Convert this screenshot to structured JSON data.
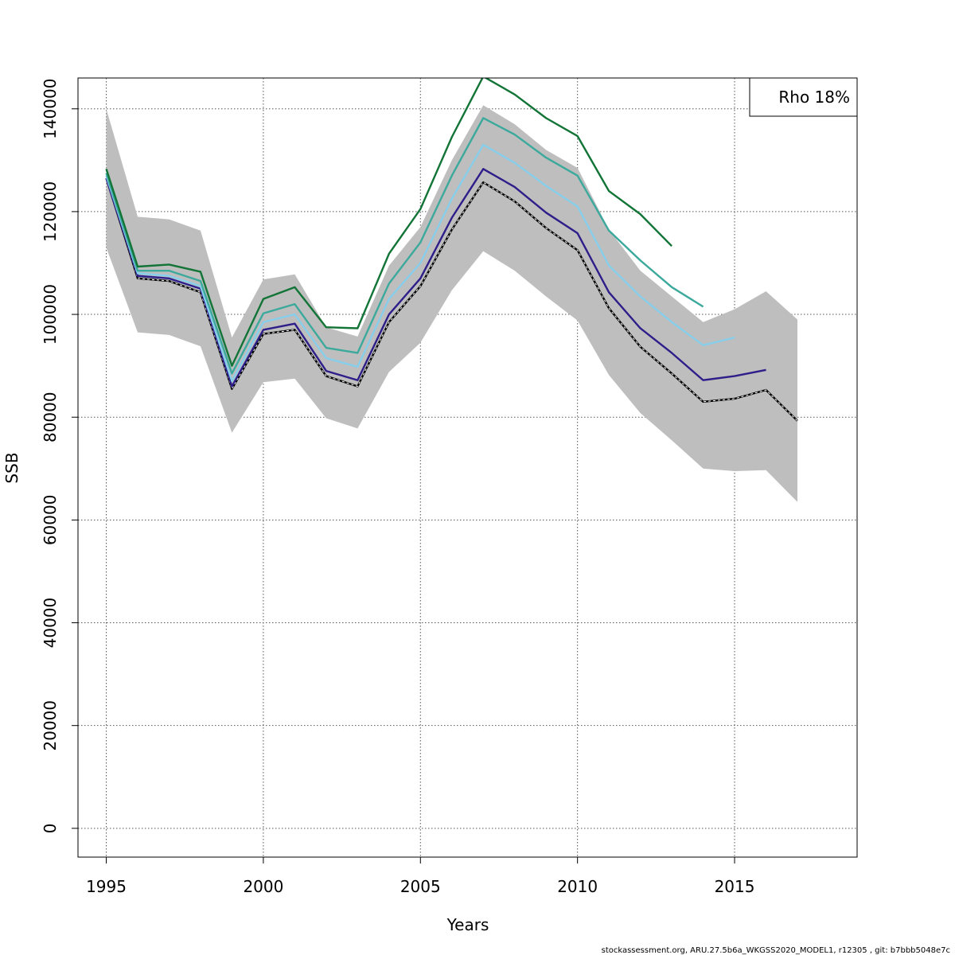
{
  "chart_data": {
    "type": "line",
    "xlabel": "Years",
    "ylabel": "SSB",
    "xlim": [
      1994.1,
      2018.9
    ],
    "ylim": [
      -5600,
      146000
    ],
    "x_ticks": [
      1995,
      2000,
      2005,
      2010,
      2015
    ],
    "y_ticks": [
      0,
      20000,
      40000,
      60000,
      80000,
      100000,
      120000,
      140000
    ],
    "grid": true,
    "legend": {
      "position": "top-right",
      "text": "Rho 18%"
    },
    "footer": "stockassessment.org, ARU.27.5b6a_WKGSS2020_MODEL1, r12305 , git: b7bbb5048e7c",
    "band": {
      "x": [
        1995,
        1996,
        1997,
        1998,
        1999,
        2000,
        2001,
        2002,
        2003,
        2004,
        2005,
        2006,
        2007,
        2008,
        2009,
        2010,
        2011,
        2012,
        2013,
        2014,
        2015,
        2016,
        2017
      ],
      "upper": [
        140000,
        119000,
        118500,
        116300,
        95500,
        106800,
        107800,
        97500,
        95700,
        109500,
        117000,
        130000,
        140700,
        137000,
        132000,
        128500,
        116500,
        108500,
        103500,
        98500,
        101000,
        104500,
        99000
      ],
      "lower": [
        113000,
        96500,
        96000,
        93800,
        77000,
        86800,
        87500,
        79800,
        77800,
        88800,
        94500,
        104700,
        112300,
        108500,
        103500,
        98800,
        88200,
        80800,
        75500,
        70000,
        69500,
        69700,
        63500
      ],
      "color": "#bebebe"
    },
    "series": [
      {
        "color": "#000000",
        "dashed": true,
        "x": [
          1995,
          1996,
          1997,
          1998,
          1999,
          2000,
          2001,
          2002,
          2003,
          2004,
          2005,
          2006,
          2007,
          2008,
          2009,
          2010,
          2011,
          2012,
          2013,
          2014,
          2015,
          2016,
          2017
        ],
        "values": [
          126500,
          107000,
          106500,
          104300,
          85500,
          96200,
          97000,
          88000,
          86000,
          98500,
          105500,
          116500,
          125700,
          122000,
          116800,
          112500,
          101200,
          93700,
          88500,
          83000,
          83600,
          85300,
          79300
        ]
      },
      {
        "color": "#2e1e8a",
        "dashed": false,
        "x": [
          1995,
          1996,
          1997,
          1998,
          1999,
          2000,
          2001,
          2002,
          2003,
          2004,
          2005,
          2006,
          2007,
          2008,
          2009,
          2010,
          2011,
          2012,
          2013,
          2014,
          2015,
          2016
        ],
        "values": [
          126500,
          107500,
          107000,
          105000,
          86000,
          97000,
          98200,
          89000,
          87200,
          100000,
          107000,
          118800,
          128300,
          124800,
          119800,
          115800,
          104300,
          97300,
          92500,
          87200,
          88000,
          89200
        ]
      },
      {
        "color": "#87ceeb",
        "dashed": false,
        "x": [
          1995,
          1996,
          1997,
          1998,
          1999,
          2000,
          2001,
          2002,
          2003,
          2004,
          2005,
          2006,
          2007,
          2008,
          2009,
          2010,
          2011,
          2012,
          2013,
          2014,
          2015
        ],
        "values": [
          127000,
          108000,
          107500,
          105500,
          87000,
          98500,
          100000,
          91500,
          89800,
          103000,
          110000,
          122500,
          133000,
          129500,
          125000,
          121000,
          109500,
          103500,
          98500,
          94000,
          95500
        ]
      },
      {
        "color": "#3ba99c",
        "dashed": false,
        "x": [
          1995,
          1996,
          1997,
          1998,
          1999,
          2000,
          2001,
          2002,
          2003,
          2004,
          2005,
          2006,
          2007,
          2008,
          2009,
          2010,
          2011,
          2012,
          2013,
          2014
        ],
        "values": [
          127500,
          108500,
          108500,
          106500,
          88500,
          100200,
          102000,
          93500,
          92500,
          106000,
          114000,
          127000,
          138200,
          135000,
          130500,
          127000,
          116300,
          110500,
          105300,
          101500
        ]
      },
      {
        "color": "#127436",
        "dashed": false,
        "x": [
          1995,
          1996,
          1997,
          1998,
          1999,
          2000,
          2001,
          2002,
          2003,
          2004,
          2005,
          2006,
          2007,
          2008,
          2009,
          2010,
          2011,
          2012,
          2013
        ],
        "values": [
          128300,
          109300,
          109700,
          108300,
          90000,
          103000,
          105300,
          97500,
          97300,
          111800,
          120500,
          134500,
          146300,
          142800,
          138200,
          134700,
          124000,
          119500,
          113300
        ]
      }
    ]
  }
}
